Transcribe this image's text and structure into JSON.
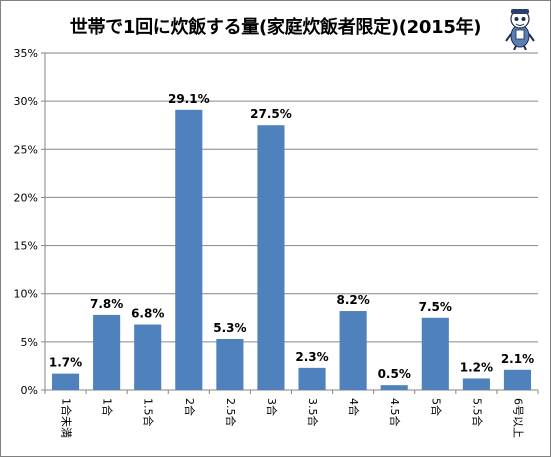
{
  "chart_data": {
    "type": "bar",
    "title": "世帯で1回に炊飯する量(家庭炊飯者限定)(2015年)",
    "categories": [
      "1合未満",
      "1合",
      "1.5合",
      "2合",
      "2.5合",
      "3合",
      "3.5合",
      "4合",
      "4.5合",
      "5合",
      "5.5合",
      "6号以上"
    ],
    "values": [
      1.7,
      7.8,
      6.8,
      29.1,
      5.3,
      27.5,
      2.3,
      8.2,
      0.5,
      7.5,
      1.2,
      2.1
    ],
    "value_labels": [
      "1.7%",
      "7.8%",
      "6.8%",
      "29.1%",
      "5.3%",
      "27.5%",
      "2.3%",
      "8.2%",
      "0.5%",
      "7.5%",
      "1.2%",
      "2.1%"
    ],
    "ylim": [
      0,
      35
    ],
    "yticks": [
      "0%",
      "5%",
      "10%",
      "15%",
      "20%",
      "25%",
      "30%",
      "35%"
    ],
    "grid": true,
    "bar_color": "#4f81bd",
    "grid_color": "#868686"
  },
  "mascot": {
    "icon": "mascot-character-icon"
  }
}
